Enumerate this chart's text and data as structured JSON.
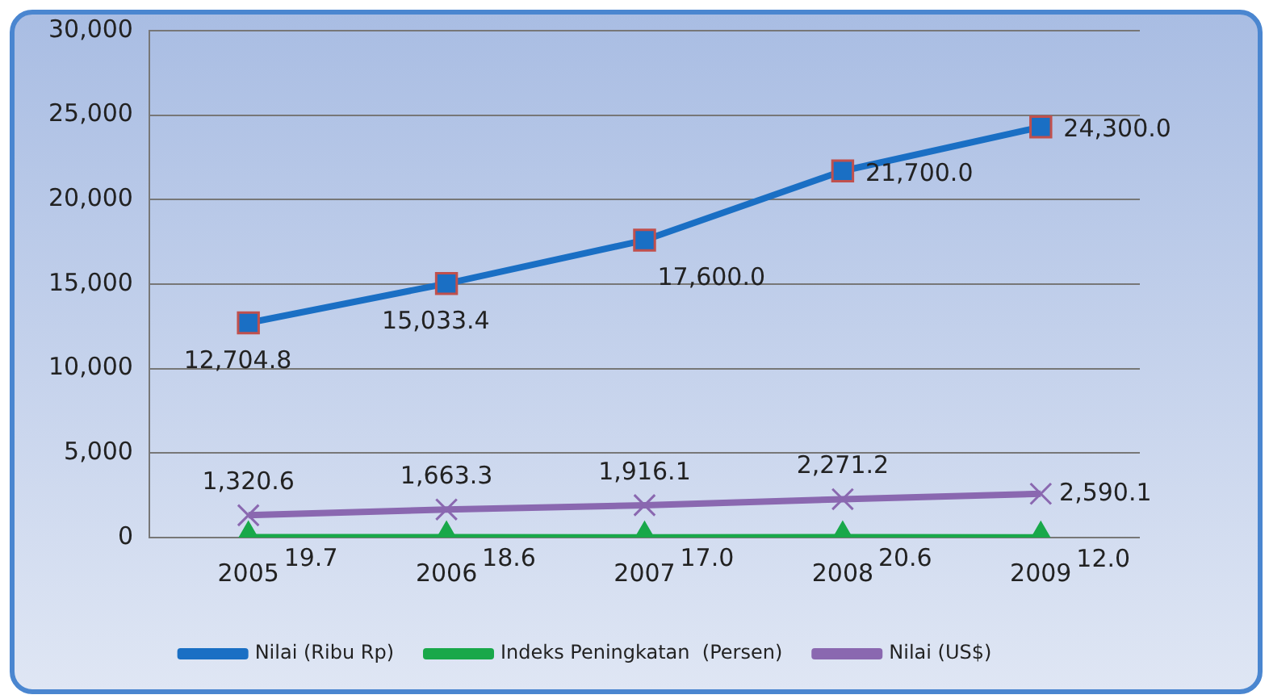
{
  "chart_data": {
    "type": "line",
    "categories": [
      "2005",
      "2006",
      "2007",
      "2008",
      "2009"
    ],
    "series": [
      {
        "name": "Nilai (Ribu Rp)",
        "color": "#1a6fc4",
        "marker": "square",
        "values": [
          12704.8,
          15033.4,
          17600.0,
          21700.0,
          24300.0
        ],
        "value_labels": [
          "12,704.8",
          "15,033.4",
          "17,600.0",
          "21,700.0",
          "24,300.0"
        ]
      },
      {
        "name": "Indeks Peningkatan  (Persen)",
        "color": "#19a84a",
        "marker": "triangle",
        "values": [
          19.7,
          18.6,
          17.0,
          20.6,
          12.0
        ],
        "value_labels": [
          "19.7",
          "18.6",
          "17.0",
          "20.6",
          "12.0"
        ]
      },
      {
        "name": "Nilai (US$)",
        "color": "#8a68b0",
        "marker": "cross",
        "values": [
          1320.6,
          1663.3,
          1916.1,
          2271.2,
          2590.1
        ],
        "value_labels": [
          "1,320.6",
          "1,663.3",
          "1,916.1",
          "2,271.2",
          "2,590.1"
        ]
      }
    ],
    "ylim": [
      0,
      30000
    ],
    "yticks": [
      {
        "value": 0,
        "label": "0"
      },
      {
        "value": 5000,
        "label": "5,000"
      },
      {
        "value": 10000,
        "label": "10,000"
      },
      {
        "value": 15000,
        "label": "15,000"
      },
      {
        "value": 20000,
        "label": "20,000"
      },
      {
        "value": 25000,
        "label": "25,000"
      },
      {
        "value": 30000,
        "label": "30,000"
      }
    ],
    "grid": "y",
    "legend": "bottom"
  }
}
